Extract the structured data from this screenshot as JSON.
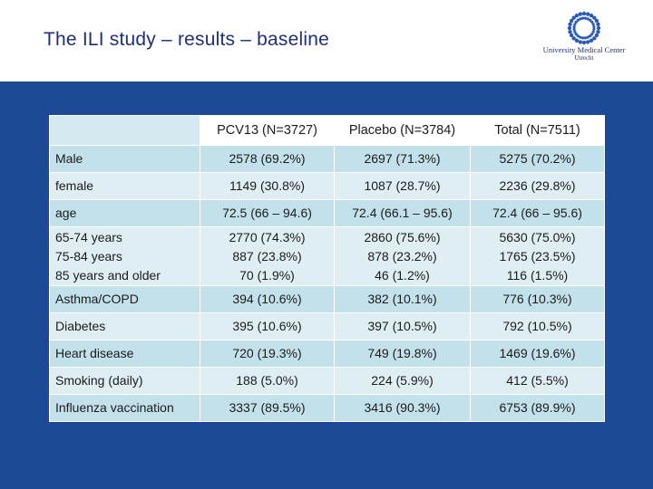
{
  "slide": {
    "title": "The ILI study – results – baseline",
    "logo": {
      "icon": "umc-sunburst-logo",
      "name": "University Medical Center",
      "city": "Utrecht"
    },
    "colors": {
      "title": "#1f2f7a",
      "panel_background": "#1d4a97",
      "row_dark": "#c3e1eb",
      "row_light": "#dfeef3"
    }
  },
  "table": {
    "headers": [
      "",
      "PCV13 (N=3727)",
      "Placebo (N=3784)",
      "Total (N=7511)"
    ],
    "rows": [
      {
        "label": [
          "Male"
        ],
        "pcv13": [
          "2578 (69.2%)"
        ],
        "placebo": [
          "2697 (71.3%)"
        ],
        "total": [
          "5275 (70.2%)"
        ]
      },
      {
        "label": [
          "female"
        ],
        "pcv13": [
          "1149 (30.8%)"
        ],
        "placebo": [
          "1087 (28.7%)"
        ],
        "total": [
          "2236 (29.8%)"
        ]
      },
      {
        "label": [
          "age"
        ],
        "pcv13": [
          "72.5 (66 – 94.6)"
        ],
        "placebo": [
          "72.4 (66.1 – 95.6)"
        ],
        "total": [
          "72.4 (66 – 95.6)"
        ]
      },
      {
        "label": [
          "65-74 years",
          "75-84 years",
          "85 years and older"
        ],
        "pcv13": [
          "2770 (74.3%)",
          "887 (23.8%)",
          "70 (1.9%)"
        ],
        "placebo": [
          "2860 (75.6%)",
          "878 (23.2%)",
          "46 (1.2%)"
        ],
        "total": [
          "5630 (75.0%)",
          "1765 (23.5%)",
          "116 (1.5%)"
        ]
      },
      {
        "label": [
          "Asthma/COPD"
        ],
        "pcv13": [
          "394 (10.6%)"
        ],
        "placebo": [
          "382 (10.1%)"
        ],
        "total": [
          "776 (10.3%)"
        ]
      },
      {
        "label": [
          "Diabetes"
        ],
        "pcv13": [
          "395 (10.6%)"
        ],
        "placebo": [
          "397 (10.5%)"
        ],
        "total": [
          "792 (10.5%)"
        ]
      },
      {
        "label": [
          "Heart disease"
        ],
        "pcv13": [
          "720 (19.3%)"
        ],
        "placebo": [
          "749 (19.8%)"
        ],
        "total": [
          "1469 (19.6%)"
        ]
      },
      {
        "label": [
          "Smoking (daily)"
        ],
        "pcv13": [
          "188 (5.0%)"
        ],
        "placebo": [
          "224 (5.9%)"
        ],
        "total": [
          "412 (5.5%)"
        ]
      },
      {
        "label": [
          "Influenza vaccination"
        ],
        "pcv13": [
          "3337 (89.5%)"
        ],
        "placebo": [
          "3416 (90.3%)"
        ],
        "total": [
          "6753 (89.9%)"
        ]
      }
    ]
  }
}
